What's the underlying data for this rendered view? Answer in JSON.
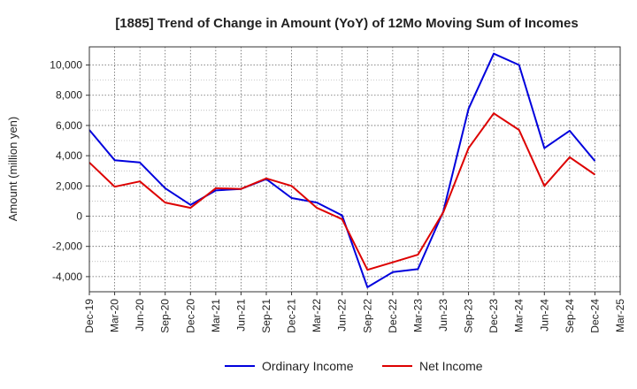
{
  "chart_data": {
    "type": "line",
    "title": "[1885]  Trend of Change in Amount (YoY) of 12Mo Moving Sum of Incomes",
    "xlabel": "",
    "ylabel": "Amount (million yen)",
    "x": [
      "Dec-19",
      "Mar-20",
      "Jun-20",
      "Sep-20",
      "Dec-20",
      "Mar-21",
      "Jun-21",
      "Sep-21",
      "Dec-21",
      "Mar-22",
      "Jun-22",
      "Sep-22",
      "Dec-22",
      "Mar-23",
      "Jun-23",
      "Sep-23",
      "Dec-23",
      "Mar-24",
      "Jun-24",
      "Sep-24",
      "Dec-24",
      "Mar-25"
    ],
    "yticks": [
      -4000,
      -2000,
      0,
      2000,
      4000,
      6000,
      8000,
      10000
    ],
    "ytick_labels": [
      "-4,000",
      "-2,000",
      "0",
      "2,000",
      "4,000",
      "6,000",
      "8,000",
      "10,000"
    ],
    "ylim": [
      -5000,
      11200
    ],
    "grid": true,
    "legend_position": "bottom",
    "series": [
      {
        "name": "Ordinary Income",
        "color": "#0000dd",
        "values": [
          5700,
          3700,
          3550,
          1850,
          750,
          1700,
          1800,
          2450,
          1200,
          900,
          50,
          -4700,
          -3700,
          -3500,
          300,
          7100,
          10750,
          10000,
          4500,
          5650,
          3650,
          null
        ]
      },
      {
        "name": "Net Income",
        "color": "#dd0000",
        "values": [
          3550,
          1950,
          2300,
          900,
          550,
          1850,
          1800,
          2500,
          2000,
          550,
          -200,
          -3550,
          -3050,
          -2550,
          250,
          4500,
          6800,
          5700,
          2000,
          3900,
          2750,
          null
        ]
      }
    ]
  }
}
